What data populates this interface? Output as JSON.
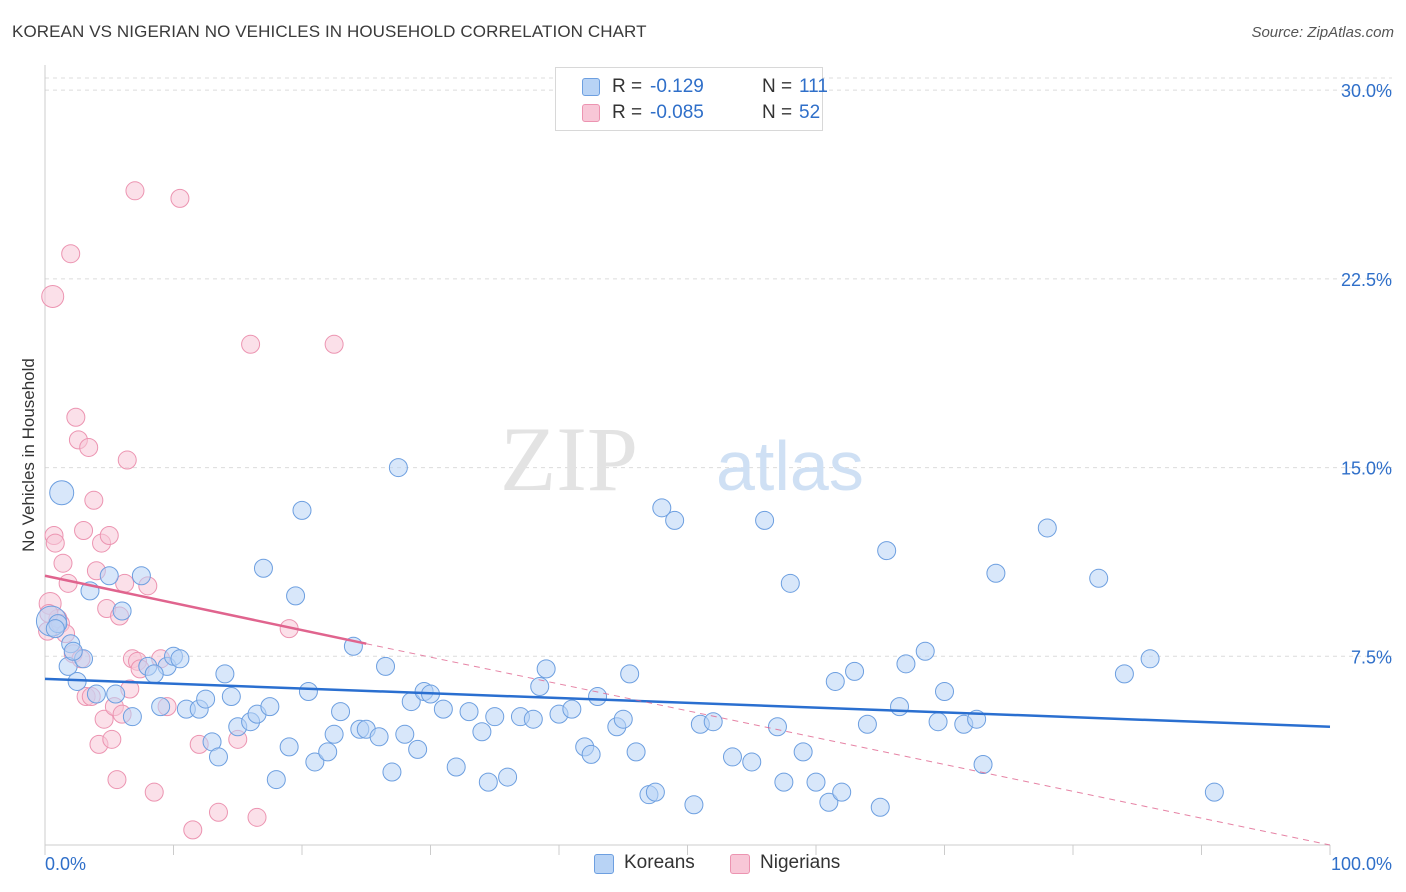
{
  "header": {
    "title": "KOREAN VS NIGERIAN NO VEHICLES IN HOUSEHOLD CORRELATION CHART",
    "source": "Source: ZipAtlas.com"
  },
  "watermark": {
    "part1": "ZIP",
    "part2": "atlas"
  },
  "legend": {
    "rows": [
      {
        "r_label": "R =",
        "r_value": "-0.129",
        "n_label": "N =",
        "n_value": "111"
      },
      {
        "r_label": "R =",
        "r_value": "-0.085",
        "n_label": "N =",
        "n_value": "52"
      }
    ]
  },
  "bottom_legend": {
    "koreans": "Koreans",
    "nigerians": "Nigerians"
  },
  "colors": {
    "korean_fill": "#b8d3f5",
    "korean_stroke": "#6d9fe0",
    "korean_line": "#2a6fd0",
    "nigerian_fill": "#f8c7d7",
    "nigerian_stroke": "#ec94b1",
    "nigerian_line": "#e0648e",
    "grid": "#dcdcdc",
    "axis_text": "#2f6fc9"
  },
  "chart_data": {
    "type": "scatter",
    "title": "KOREAN VS NIGERIAN NO VEHICLES IN HOUSEHOLD CORRELATION CHART",
    "xlabel": "",
    "ylabel": "No Vehicles in Household",
    "xlim": [
      0,
      100
    ],
    "ylim": [
      0,
      31
    ],
    "x_tick_labels": [
      "0.0%",
      "100.0%"
    ],
    "y_ticks": [
      7.5,
      15.0,
      22.5,
      30.0
    ],
    "y_tick_labels": [
      "7.5%",
      "15.0%",
      "22.5%",
      "30.0%"
    ],
    "series": [
      {
        "name": "Koreans",
        "r": -0.129,
        "n": 111,
        "trend": {
          "x": [
            0,
            100
          ],
          "y": [
            6.6,
            4.7
          ],
          "extrapolated_to": null
        },
        "points": [
          [
            0.5,
            8.9
          ],
          [
            1.0,
            8.8
          ],
          [
            1.3,
            14.0
          ],
          [
            1.8,
            7.1
          ],
          [
            2.0,
            8.0
          ],
          [
            2.5,
            6.5
          ],
          [
            3.0,
            7.4
          ],
          [
            4.0,
            6.0
          ],
          [
            5.0,
            10.7
          ],
          [
            5.5,
            6.0
          ],
          [
            6.0,
            9.3
          ],
          [
            6.8,
            5.1
          ],
          [
            7.5,
            10.7
          ],
          [
            8.0,
            7.1
          ],
          [
            9.0,
            5.5
          ],
          [
            9.5,
            7.1
          ],
          [
            10.0,
            7.5
          ],
          [
            10.5,
            7.4
          ],
          [
            11.0,
            5.4
          ],
          [
            12.0,
            5.4
          ],
          [
            12.5,
            5.8
          ],
          [
            13.0,
            4.1
          ],
          [
            13.5,
            3.5
          ],
          [
            14.0,
            6.8
          ],
          [
            14.5,
            5.9
          ],
          [
            15.0,
            4.7
          ],
          [
            16.0,
            4.9
          ],
          [
            16.5,
            5.2
          ],
          [
            17.0,
            11.0
          ],
          [
            17.5,
            5.5
          ],
          [
            18.0,
            2.6
          ],
          [
            19.0,
            3.9
          ],
          [
            19.5,
            9.9
          ],
          [
            20.0,
            13.3
          ],
          [
            20.5,
            6.1
          ],
          [
            21.0,
            3.3
          ],
          [
            22.0,
            3.7
          ],
          [
            22.5,
            4.4
          ],
          [
            23.0,
            5.3
          ],
          [
            24.0,
            7.9
          ],
          [
            24.5,
            4.6
          ],
          [
            25.0,
            4.6
          ],
          [
            26.0,
            4.3
          ],
          [
            27.0,
            2.9
          ],
          [
            27.5,
            15.0
          ],
          [
            28.0,
            4.4
          ],
          [
            28.5,
            5.7
          ],
          [
            29.0,
            3.8
          ],
          [
            29.5,
            6.1
          ],
          [
            30.0,
            6.0
          ],
          [
            31.0,
            5.4
          ],
          [
            32.0,
            3.1
          ],
          [
            33.0,
            5.3
          ],
          [
            34.0,
            4.5
          ],
          [
            34.5,
            2.5
          ],
          [
            35.0,
            5.1
          ],
          [
            36.0,
            2.7
          ],
          [
            37.0,
            5.1
          ],
          [
            38.0,
            5.0
          ],
          [
            38.5,
            6.3
          ],
          [
            39.0,
            7.0
          ],
          [
            40.0,
            5.2
          ],
          [
            41.0,
            5.4
          ],
          [
            42.0,
            3.9
          ],
          [
            42.5,
            3.6
          ],
          [
            43.0,
            5.9
          ],
          [
            44.5,
            4.7
          ],
          [
            45.5,
            6.8
          ],
          [
            46.0,
            3.7
          ],
          [
            47.0,
            2.0
          ],
          [
            47.5,
            2.1
          ],
          [
            48.0,
            13.4
          ],
          [
            49.0,
            12.9
          ],
          [
            50.5,
            1.6
          ],
          [
            51.0,
            4.8
          ],
          [
            52.0,
            4.9
          ],
          [
            53.5,
            3.5
          ],
          [
            55.0,
            3.3
          ],
          [
            56.0,
            12.9
          ],
          [
            57.0,
            4.7
          ],
          [
            57.5,
            2.5
          ],
          [
            58.0,
            10.4
          ],
          [
            59.0,
            3.7
          ],
          [
            60.0,
            2.5
          ],
          [
            61.0,
            1.7
          ],
          [
            61.5,
            6.5
          ],
          [
            62.0,
            2.1
          ],
          [
            63.0,
            6.9
          ],
          [
            64.0,
            4.8
          ],
          [
            65.0,
            1.5
          ],
          [
            65.5,
            11.7
          ],
          [
            66.5,
            5.5
          ],
          [
            67.0,
            7.2
          ],
          [
            68.5,
            7.7
          ],
          [
            69.5,
            4.9
          ],
          [
            70.0,
            6.1
          ],
          [
            71.5,
            4.8
          ],
          [
            72.5,
            5.0
          ],
          [
            73.0,
            3.2
          ],
          [
            74.0,
            10.8
          ],
          [
            78.0,
            12.6
          ],
          [
            82.0,
            10.6
          ],
          [
            84.0,
            6.8
          ],
          [
            86.0,
            7.4
          ],
          [
            91.0,
            2.1
          ],
          [
            0.8,
            8.6
          ],
          [
            2.2,
            7.7
          ],
          [
            3.5,
            10.1
          ],
          [
            8.5,
            6.8
          ],
          [
            26.5,
            7.1
          ],
          [
            45.0,
            5.0
          ]
        ]
      },
      {
        "name": "Nigerians",
        "r": -0.085,
        "n": 52,
        "trend": {
          "x": [
            0,
            25
          ],
          "y": [
            10.7,
            8.0
          ],
          "extrapolated_to": [
            100,
            0.0
          ]
        },
        "points": [
          [
            0.2,
            8.5
          ],
          [
            0.4,
            9.6
          ],
          [
            0.6,
            21.8
          ],
          [
            0.7,
            12.3
          ],
          [
            0.8,
            12.0
          ],
          [
            1.0,
            9.0
          ],
          [
            1.2,
            8.8
          ],
          [
            1.4,
            11.2
          ],
          [
            1.6,
            8.4
          ],
          [
            1.8,
            10.4
          ],
          [
            2.0,
            23.5
          ],
          [
            2.2,
            7.6
          ],
          [
            2.4,
            17.0
          ],
          [
            2.6,
            16.1
          ],
          [
            2.8,
            7.4
          ],
          [
            3.0,
            12.5
          ],
          [
            3.2,
            5.9
          ],
          [
            3.4,
            15.8
          ],
          [
            3.6,
            5.9
          ],
          [
            3.8,
            13.7
          ],
          [
            4.0,
            10.9
          ],
          [
            4.2,
            4.0
          ],
          [
            4.4,
            12.0
          ],
          [
            4.6,
            5.0
          ],
          [
            4.8,
            9.4
          ],
          [
            5.0,
            12.3
          ],
          [
            5.2,
            4.2
          ],
          [
            5.4,
            5.5
          ],
          [
            5.6,
            2.6
          ],
          [
            5.8,
            9.1
          ],
          [
            6.0,
            5.2
          ],
          [
            6.2,
            10.4
          ],
          [
            6.4,
            15.3
          ],
          [
            6.6,
            6.2
          ],
          [
            6.8,
            7.4
          ],
          [
            7.0,
            26.0
          ],
          [
            7.2,
            7.3
          ],
          [
            7.4,
            7.0
          ],
          [
            8.0,
            10.3
          ],
          [
            8.5,
            2.1
          ],
          [
            9.0,
            7.4
          ],
          [
            9.5,
            5.5
          ],
          [
            10.5,
            25.7
          ],
          [
            11.5,
            0.6
          ],
          [
            12.0,
            4.0
          ],
          [
            13.5,
            1.3
          ],
          [
            15.0,
            4.2
          ],
          [
            16.0,
            19.9
          ],
          [
            16.5,
            1.1
          ],
          [
            19.0,
            8.6
          ],
          [
            22.5,
            19.9
          ],
          [
            0.3,
            9.2
          ]
        ]
      }
    ]
  }
}
